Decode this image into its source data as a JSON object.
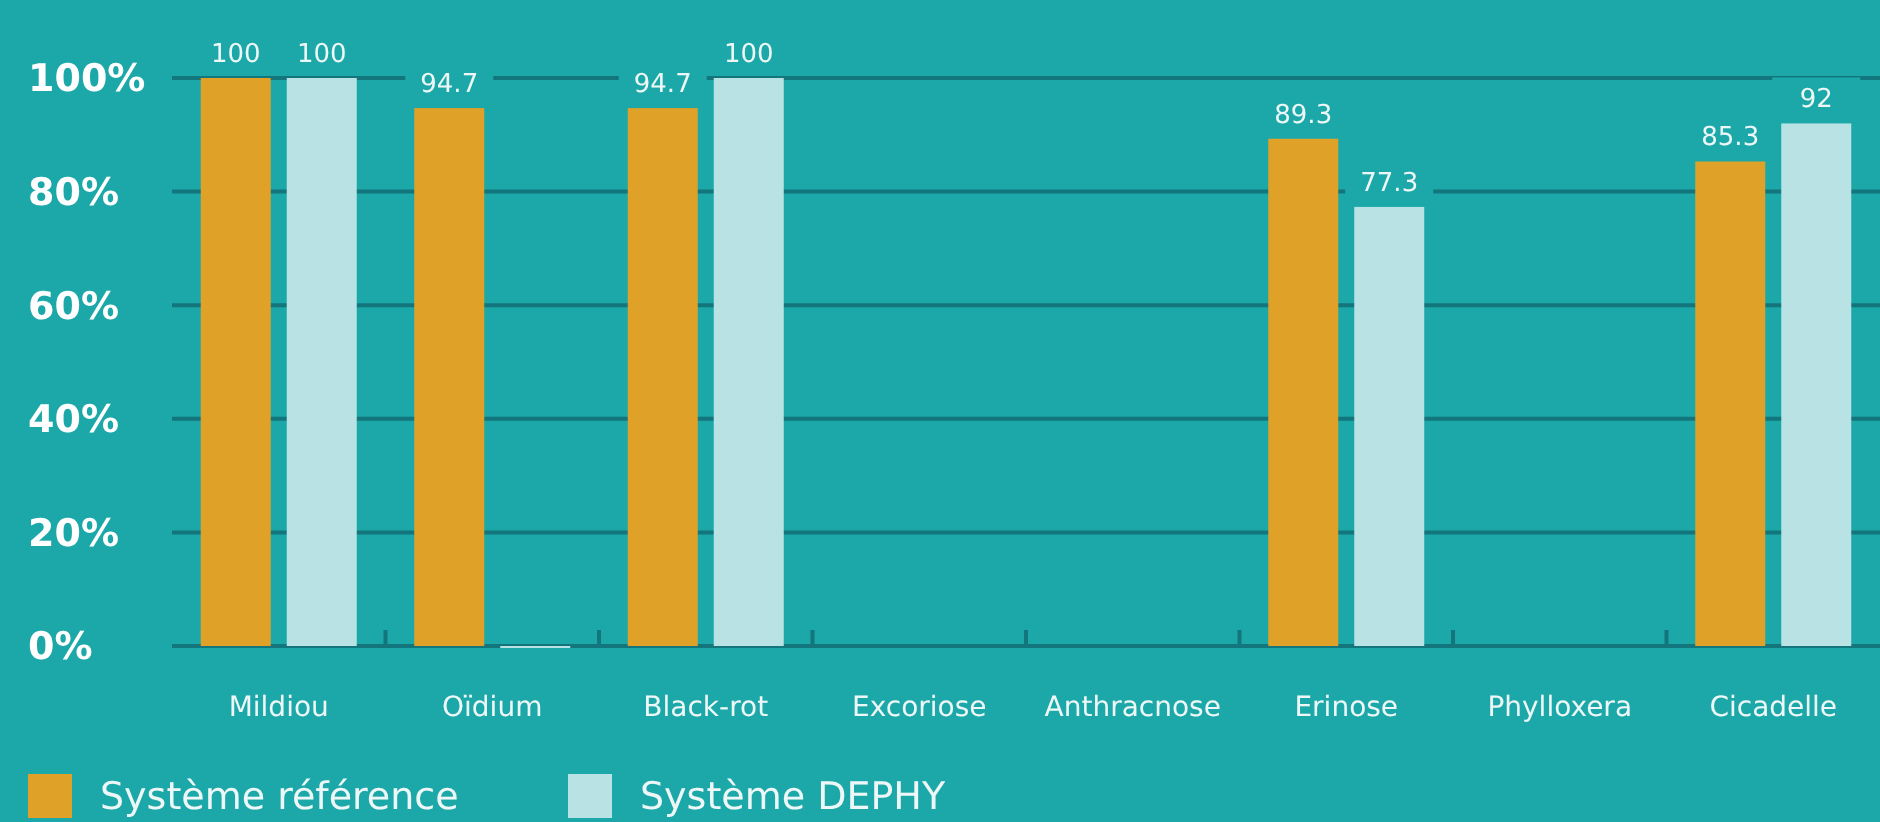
{
  "chart_data": {
    "type": "bar",
    "categories": [
      "Mildiou",
      "Oïdium",
      "Black-rot",
      "Excoriose",
      "Anthracnose",
      "Erinose",
      "Phylloxera",
      "Cicadelle"
    ],
    "series": [
      {
        "name": "Système référence",
        "color": "#e0a128",
        "values": [
          100,
          94.7,
          94.7,
          null,
          null,
          89.3,
          null,
          85.3
        ],
        "value_labels": [
          "100",
          "94.7",
          "94.7",
          null,
          null,
          "89.3",
          null,
          "85.3"
        ]
      },
      {
        "name": "Système DEPHY",
        "color": "#b9e2e5",
        "values": [
          100,
          0,
          100,
          null,
          null,
          77.3,
          null,
          92
        ],
        "value_labels": [
          "100",
          null,
          "100",
          null,
          null,
          "77.3",
          null,
          "92"
        ]
      }
    ],
    "ylim": [
      0,
      100
    ],
    "yticks": [
      {
        "value": 0,
        "label": "0%"
      },
      {
        "value": 20,
        "label": "20%"
      },
      {
        "value": 40,
        "label": "40%"
      },
      {
        "value": 60,
        "label": "60%"
      },
      {
        "value": 80,
        "label": "80%"
      },
      {
        "value": 100,
        "label": "100%"
      }
    ],
    "grid": "y",
    "legend": "bottom left"
  }
}
